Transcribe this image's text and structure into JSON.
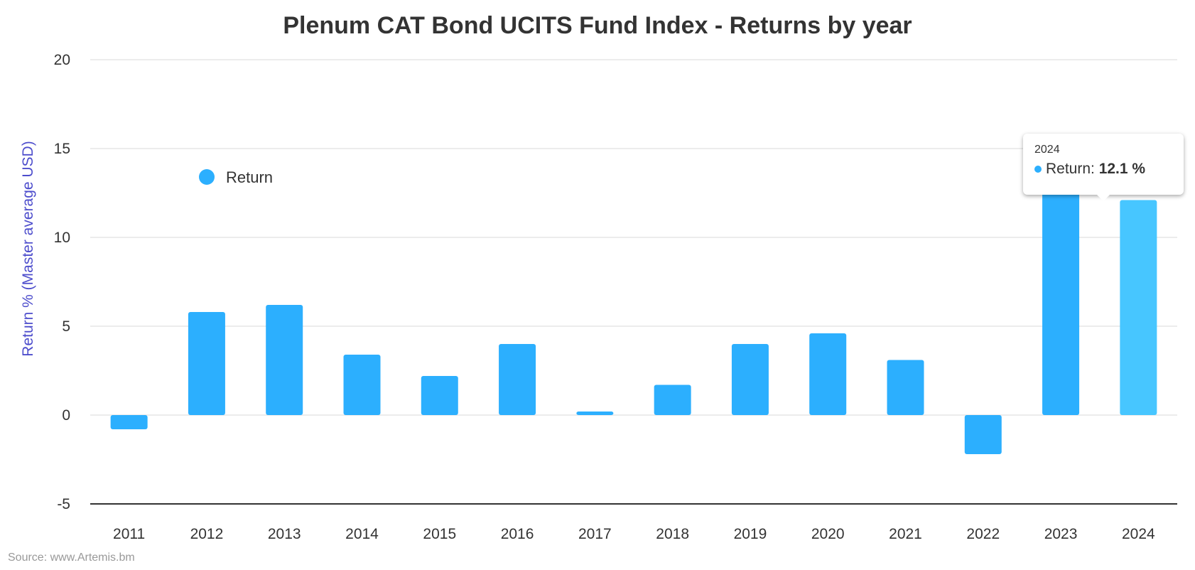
{
  "chart_data": {
    "type": "bar",
    "title": "Plenum CAT Bond UCITS Fund Index - Returns by year",
    "ylabel": "Return % (Master average USD)",
    "xlabel": "",
    "categories": [
      "2011",
      "2012",
      "2013",
      "2014",
      "2015",
      "2016",
      "2017",
      "2018",
      "2019",
      "2020",
      "2021",
      "2022",
      "2023",
      "2024"
    ],
    "series": [
      {
        "name": "Return",
        "values": [
          -0.8,
          5.8,
          6.2,
          3.4,
          2.2,
          4.0,
          0.2,
          1.7,
          4.0,
          4.6,
          3.1,
          -2.2,
          14.1,
          12.1
        ]
      }
    ],
    "ylim": [
      -5,
      20
    ],
    "yticks": [
      "-5",
      "0",
      "5",
      "10",
      "15",
      "20"
    ],
    "grid": true,
    "legend_placement": "top-left inside",
    "colors": {
      "bar": "#2caffe",
      "bar_hover": "#47c6ff",
      "axis_title": "#4d4dcc"
    },
    "source": "Source: www.Artemis.bm",
    "tooltip": {
      "header": "2024",
      "label": "Return: ",
      "value": "12.1 %"
    }
  }
}
